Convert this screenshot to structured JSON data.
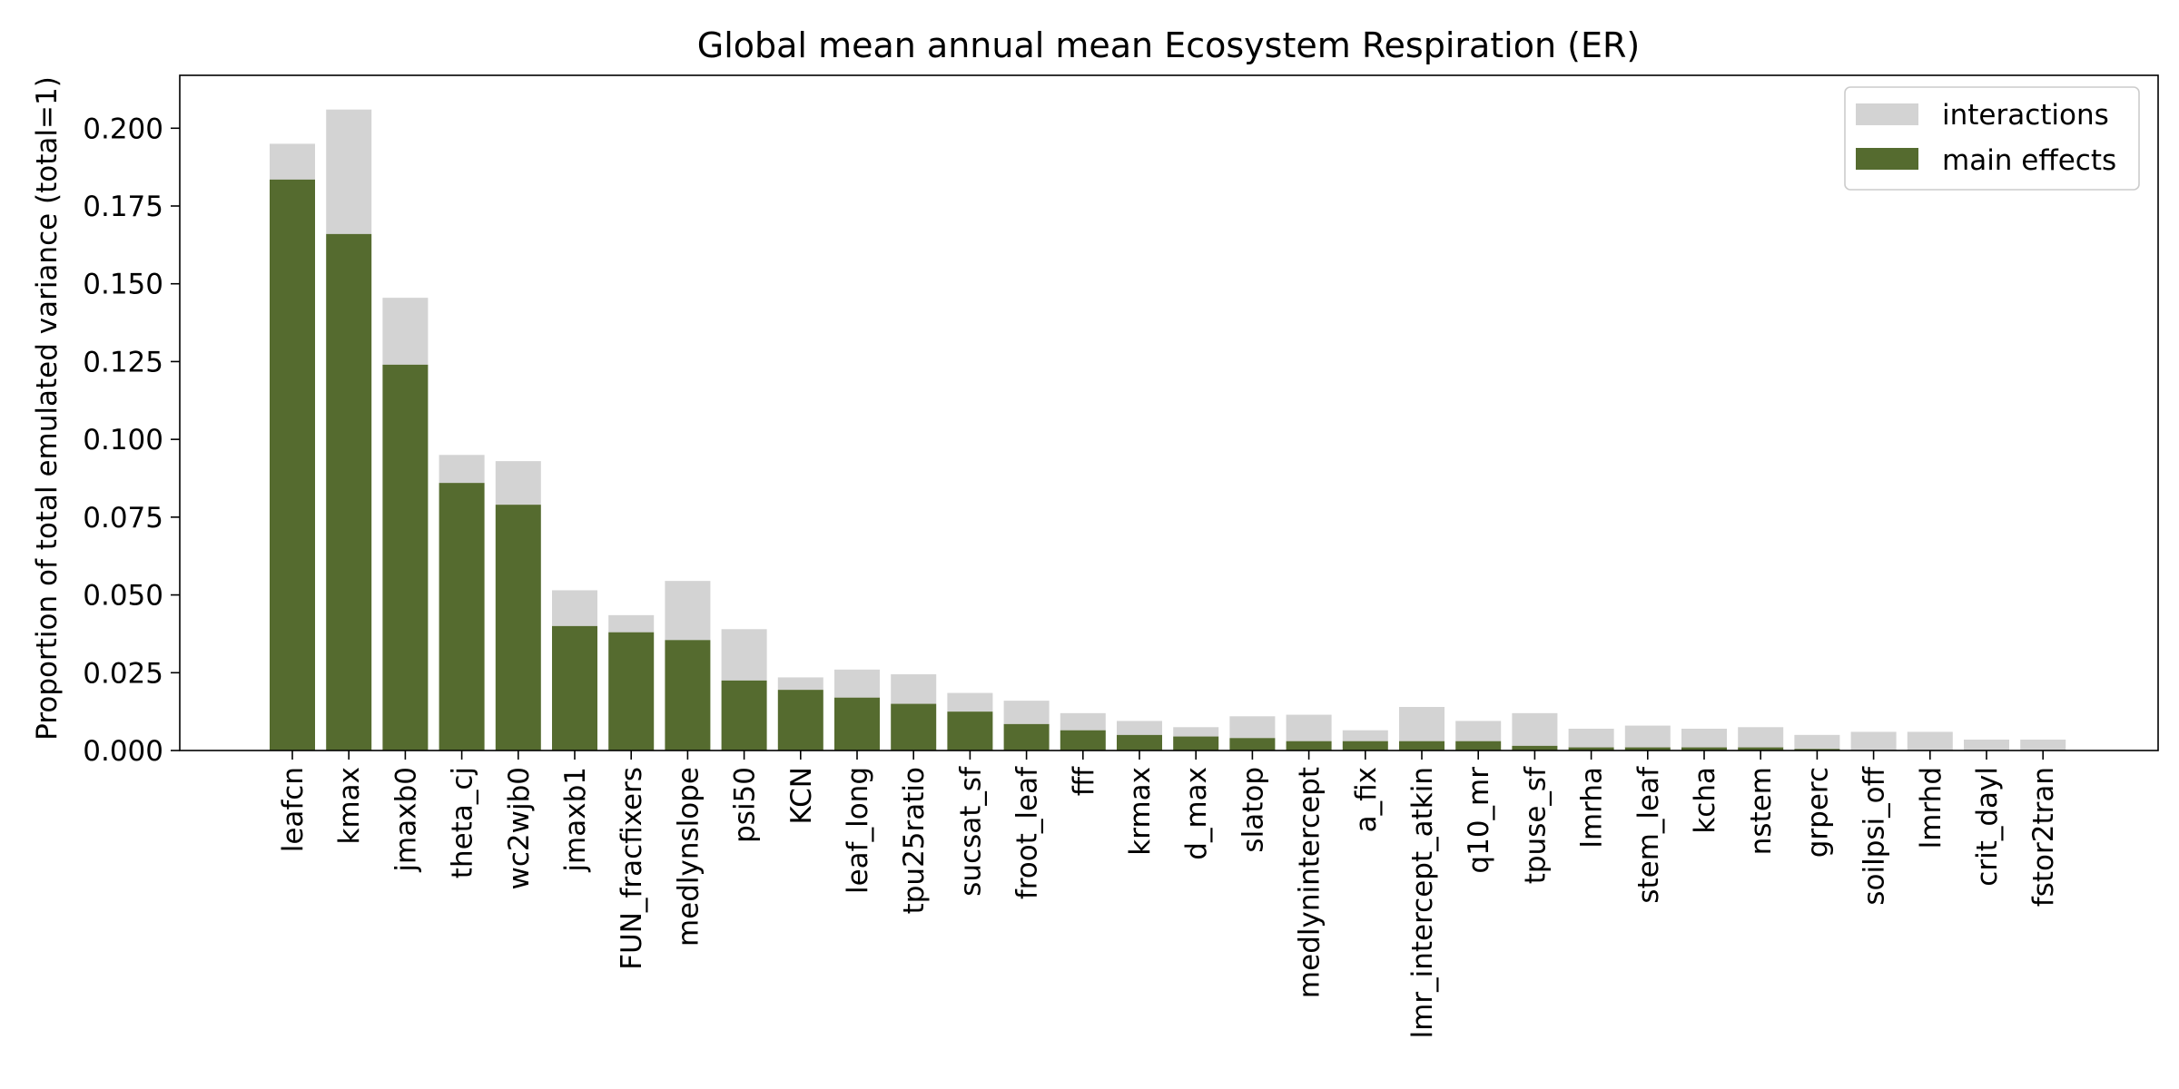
{
  "chart_data": {
    "type": "bar",
    "stacked": true,
    "title": "Global mean annual mean Ecosystem Respiration (ER)",
    "xlabel": "",
    "ylabel": "Proportion of total emulated variance (total=1)",
    "ylim": [
      0,
      0.217
    ],
    "yticks": [
      "0.000",
      "0.025",
      "0.050",
      "0.075",
      "0.100",
      "0.125",
      "0.150",
      "0.175",
      "0.200"
    ],
    "grid": false,
    "legend_position": "top-right",
    "categories": [
      "leafcn",
      "kmax",
      "jmaxb0",
      "theta_cj",
      "wc2wjb0",
      "jmaxb1",
      "FUN_fracfixers",
      "medlynslope",
      "psi50",
      "KCN",
      "leaf_long",
      "tpu25ratio",
      "sucsat_sf",
      "froot_leaf",
      "fff",
      "krmax",
      "d_max",
      "slatop",
      "medlynintercept",
      "a_fix",
      "lmr_intercept_atkin",
      "q10_mr",
      "tpuse_sf",
      "lmrha",
      "stem_leaf",
      "kcha",
      "nstem",
      "grperc",
      "soilpsi_off",
      "lmrhd",
      "crit_dayl",
      "fstor2tran"
    ],
    "series": [
      {
        "name": "main effects",
        "color": "#556b2f",
        "values": [
          0.1835,
          0.166,
          0.124,
          0.086,
          0.079,
          0.04,
          0.038,
          0.0355,
          0.0225,
          0.0195,
          0.017,
          0.015,
          0.0125,
          0.0085,
          0.0065,
          0.005,
          0.0045,
          0.004,
          0.003,
          0.003,
          0.003,
          0.003,
          0.0015,
          0.001,
          0.001,
          0.001,
          0.001,
          0.0005,
          0.0,
          0.0,
          0.0,
          0.0
        ]
      },
      {
        "name": "interactions",
        "color": "#d3d3d3",
        "values": [
          0.0115,
          0.04,
          0.0215,
          0.009,
          0.014,
          0.0115,
          0.0055,
          0.019,
          0.0165,
          0.004,
          0.009,
          0.0095,
          0.006,
          0.0075,
          0.0055,
          0.0045,
          0.003,
          0.007,
          0.0085,
          0.0035,
          0.011,
          0.0065,
          0.0105,
          0.006,
          0.007,
          0.006,
          0.0065,
          0.0045,
          0.006,
          0.006,
          0.0035,
          0.0035
        ]
      }
    ]
  }
}
